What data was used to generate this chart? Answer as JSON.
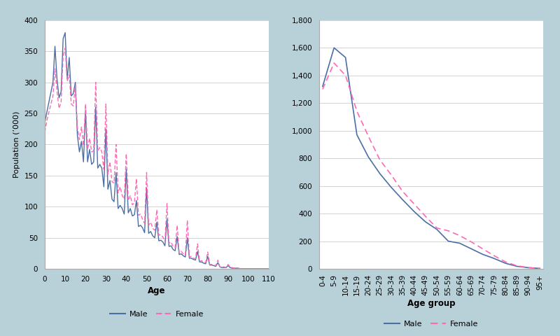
{
  "background_color": "#b8d0d8",
  "plot_bg_color": "#f0f4f6",
  "male_color": "#4a6fa5",
  "female_color": "#ff69b4",
  "left_xlabel": "Age",
  "left_ylabel": "Population (’000)",
  "right_xlabel": "Age group",
  "left_ylim": [
    0,
    400
  ],
  "left_xlim": [
    0,
    110
  ],
  "right_ylim": [
    0,
    1800
  ],
  "left_yticks": [
    0,
    50,
    100,
    150,
    200,
    250,
    300,
    350,
    400
  ],
  "right_yticks": [
    0,
    200,
    400,
    600,
    800,
    1000,
    1200,
    1400,
    1600,
    1800
  ],
  "right_age_groups": [
    "0-4",
    "5-9",
    "10-14",
    "15-19",
    "20-24",
    "25-29",
    "30-34",
    "35-39",
    "40-44",
    "45-49",
    "50-54",
    "55-59",
    "60-64",
    "65-69",
    "70-74",
    "75-79",
    "80-84",
    "85-89",
    "90-94",
    "95+"
  ],
  "right_male": [
    1320,
    1600,
    1530,
    970,
    810,
    690,
    590,
    500,
    415,
    340,
    285,
    200,
    185,
    145,
    105,
    75,
    40,
    18,
    8,
    3
  ],
  "right_female": [
    1300,
    1490,
    1400,
    1140,
    960,
    790,
    680,
    560,
    470,
    380,
    295,
    275,
    240,
    195,
    145,
    95,
    50,
    22,
    9,
    3
  ],
  "legend_male_label": "Male",
  "legend_female_label": "Female",
  "male_single": [
    235,
    252,
    268,
    284,
    300,
    358,
    305,
    275,
    285,
    370,
    380,
    305,
    340,
    278,
    282,
    300,
    215,
    188,
    205,
    172,
    255,
    172,
    192,
    168,
    172,
    260,
    162,
    168,
    162,
    132,
    225,
    128,
    142,
    112,
    108,
    155,
    97,
    102,
    97,
    88,
    160,
    90,
    97,
    85,
    87,
    110,
    68,
    70,
    66,
    58,
    130,
    57,
    60,
    53,
    50,
    75,
    45,
    46,
    43,
    37,
    80,
    36,
    37,
    31,
    29,
    52,
    23,
    24,
    21,
    19,
    50,
    17,
    17,
    15,
    14,
    28,
    11,
    11,
    9,
    8,
    20,
    6,
    6,
    5,
    4,
    10,
    3,
    2,
    2,
    2,
    5,
    2,
    1,
    1,
    1,
    1,
    0,
    0,
    0,
    0,
    0,
    0,
    0,
    0,
    0,
    0,
    0,
    0,
    0,
    0,
    0
  ],
  "female_single": [
    220,
    238,
    252,
    265,
    278,
    322,
    285,
    258,
    268,
    342,
    355,
    302,
    312,
    265,
    262,
    295,
    228,
    208,
    228,
    198,
    265,
    192,
    210,
    188,
    190,
    300,
    190,
    195,
    188,
    160,
    265,
    152,
    172,
    140,
    138,
    200,
    122,
    132,
    118,
    112,
    185,
    110,
    118,
    103,
    106,
    145,
    86,
    88,
    80,
    73,
    155,
    70,
    75,
    65,
    62,
    95,
    54,
    55,
    51,
    44,
    105,
    41,
    43,
    36,
    34,
    70,
    26,
    28,
    24,
    22,
    78,
    19,
    20,
    17,
    16,
    40,
    12,
    13,
    11,
    10,
    27,
    7,
    7,
    6,
    5,
    14,
    3,
    3,
    3,
    2,
    7,
    3,
    2,
    1,
    1,
    1,
    0,
    0,
    0,
    0,
    0,
    0,
    0,
    0,
    0,
    0,
    0,
    0,
    0,
    0,
    0
  ]
}
